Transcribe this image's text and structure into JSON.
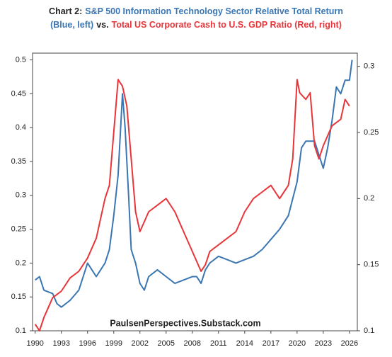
{
  "chart_data": {
    "type": "line",
    "title_lines": [
      [
        {
          "text": "Chart 2:",
          "color": "#222222"
        },
        {
          "text": "S&P 500 Information Technology Sector Relative Total Return",
          "color": "#3a76b2"
        }
      ],
      [
        {
          "text": "(Blue, left)",
          "color": "#3a76b2"
        },
        {
          "text": "vs.",
          "color": "#222222"
        },
        {
          "text": "Total US Corporate Cash to U.S. GDP Ratio (Red, right)",
          "color": "#e8353a"
        }
      ]
    ],
    "annotation": "PaulsenPerspectives.Substack.com",
    "xlim": [
      1989.7,
      2026.9
    ],
    "xticks": [
      1990,
      1993,
      1996,
      1999,
      2002,
      2005,
      2008,
      2011,
      2014,
      2017,
      2020,
      2023,
      2026
    ],
    "ylim": [
      0.1,
      0.51
    ],
    "yticks": [
      0.1,
      0.15,
      0.2,
      0.25,
      0.3,
      0.35,
      0.4,
      0.45,
      0.5
    ],
    "y2lim": [
      0.1,
      0.31
    ],
    "y2ticks": [
      0.1,
      0.15,
      0.2,
      0.25,
      0.3
    ],
    "grid": false,
    "series": [
      {
        "name": "S&P 500 Information Technology Sector Relative Total Return",
        "color": "#3a76b2",
        "axis": "y",
        "x": [
          1990,
          1990.5,
          1991,
          1992,
          1992.5,
          1993,
          1994,
          1995,
          1996,
          1996.5,
          1997,
          1998,
          1998.5,
          1999,
          1999.5,
          2000,
          2000.3,
          2000.7,
          2001,
          2001.5,
          2002,
          2002.5,
          2003,
          2004,
          2005,
          2006,
          2007,
          2008,
          2008.5,
          2009,
          2009.5,
          2010,
          2011,
          2012,
          2013,
          2014,
          2015,
          2016,
          2017,
          2018,
          2019,
          2020,
          2020.5,
          2021,
          2022,
          2022.5,
          2023,
          2023.5,
          2024,
          2024.5,
          2025,
          2025.5,
          2026,
          2026.3
        ],
        "values": [
          0.175,
          0.18,
          0.16,
          0.155,
          0.14,
          0.135,
          0.145,
          0.16,
          0.2,
          0.19,
          0.18,
          0.2,
          0.22,
          0.27,
          0.33,
          0.45,
          0.4,
          0.3,
          0.22,
          0.2,
          0.17,
          0.16,
          0.18,
          0.19,
          0.18,
          0.17,
          0.175,
          0.18,
          0.18,
          0.17,
          0.19,
          0.2,
          0.21,
          0.205,
          0.2,
          0.205,
          0.21,
          0.22,
          0.235,
          0.25,
          0.27,
          0.32,
          0.37,
          0.38,
          0.38,
          0.36,
          0.34,
          0.37,
          0.41,
          0.46,
          0.45,
          0.47,
          0.47,
          0.5
        ]
      },
      {
        "name": "Total US Corporate Cash to U.S. GDP Ratio",
        "color": "#e8353a",
        "axis": "y2",
        "x": [
          1990,
          1990.5,
          1991,
          1992,
          1993,
          1994,
          1995,
          1996,
          1997,
          1998,
          1998.5,
          1999,
          1999.5,
          2000,
          2000.5,
          2001,
          2001.5,
          2002,
          2003,
          2004,
          2005,
          2006,
          2007,
          2008,
          2009,
          2009.5,
          2010,
          2011,
          2012,
          2013,
          2014,
          2015,
          2016,
          2017,
          2018,
          2019,
          2019.5,
          2020,
          2020.3,
          2021,
          2021.5,
          2022,
          2022.5,
          2023,
          2024,
          2025,
          2025.5,
          2026
        ],
        "values": [
          0.105,
          0.1,
          0.11,
          0.125,
          0.13,
          0.14,
          0.145,
          0.155,
          0.17,
          0.2,
          0.21,
          0.25,
          0.29,
          0.285,
          0.27,
          0.23,
          0.19,
          0.175,
          0.19,
          0.195,
          0.2,
          0.19,
          0.175,
          0.16,
          0.145,
          0.15,
          0.16,
          0.165,
          0.17,
          0.175,
          0.19,
          0.2,
          0.205,
          0.21,
          0.2,
          0.21,
          0.23,
          0.29,
          0.28,
          0.275,
          0.28,
          0.24,
          0.23,
          0.24,
          0.255,
          0.26,
          0.275,
          0.27
        ]
      }
    ]
  }
}
